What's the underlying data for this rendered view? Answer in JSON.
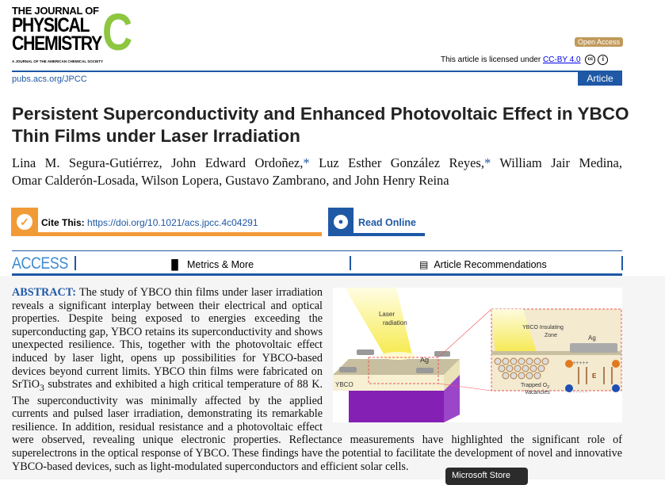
{
  "journal": {
    "logo_line1": "THE JOURNAL OF",
    "logo_line2": "PHYSICAL",
    "logo_line3": "CHEMISTRY",
    "logo_letter": "C",
    "logo_tagline": "A JOURNAL OF THE AMERICAN CHEMICAL SOCIETY",
    "url": "pubs.acs.org/JPCC",
    "brand_color": "#1f58a5",
    "accent_green": "#8dc63f"
  },
  "license": {
    "badge": "Open Access",
    "text": "This article is licensed under ",
    "link": "CC-BY 4.0",
    "cc_icon": "cc",
    "by_icon": "i"
  },
  "article_type": "Article",
  "title": "Persistent Superconductivity and Enhanced Photovoltaic Effect in YBCO Thin Films under Laser Irradiation",
  "authors": {
    "line1": [
      "Lina M. Segura-Gutiérrez, John Edward Ordoñez,",
      "*",
      " Luz Esther González Reyes,",
      "*",
      " William Jair Medina,"
    ],
    "line2": "Omar Calderón-Losada, Wilson Lopera, Gustavo Zambrano, and John Henry Reina"
  },
  "cite": {
    "label": "Cite This:",
    "doi": "https://doi.org/10.1021/acs.jpcc.4c04291",
    "icon": "check-icon",
    "color": "#f19b37"
  },
  "read_online": {
    "label": "Read Online",
    "icon": "globe-icon"
  },
  "access": {
    "label": "ACCESS",
    "metrics": "Metrics & More",
    "recommendations": "Article Recommendations"
  },
  "abstract": {
    "heading": "ABSTRACT:",
    "p1": " The study of YBCO thin films under laser irradiation reveals a significant interplay between their electrical and optical properties. Despite being exposed to energies exceeding the superconducting gap, YBCO retains its superconductivity and shows unexpected resilience. This, together with the photovoltaic effect induced by laser light, opens up possibilities for YBCO-based devices beyond current limits. YBCO thin films were fabricated on SrTiO",
    "sub3": "3",
    "p2": " substrates and exhibited a high critical temperature of 88 K. The superconductivity was minimally affected by the applied currents and pulsed laser irradiation, demonstrating its remarkable resilience. In addition, residual resistance and a photovoltaic effect were observed, revealing unique electronic properties. Reflectance measurements have highlighted the significant role of superelectrons in the optical response of YBCO. These findings have the potential to facilitate the development of novel and innovative YBCO-based devices, such as light-modulated superconductors and efficient solar cells."
  },
  "figure": {
    "laser": [
      "Laser",
      "radiation"
    ],
    "ag": "Ag",
    "ybco": "YBCO",
    "insulating": [
      "YBCO Insulating",
      "Zone"
    ],
    "ag2": "Ag",
    "trapped": [
      "Trapped O",
      "2",
      "Vacancies"
    ],
    "e": "E",
    "plus": "++++++",
    "minus": "- - - - - -",
    "electron": "e",
    "hole": "h"
  },
  "tooltip": "Microsoft Store"
}
